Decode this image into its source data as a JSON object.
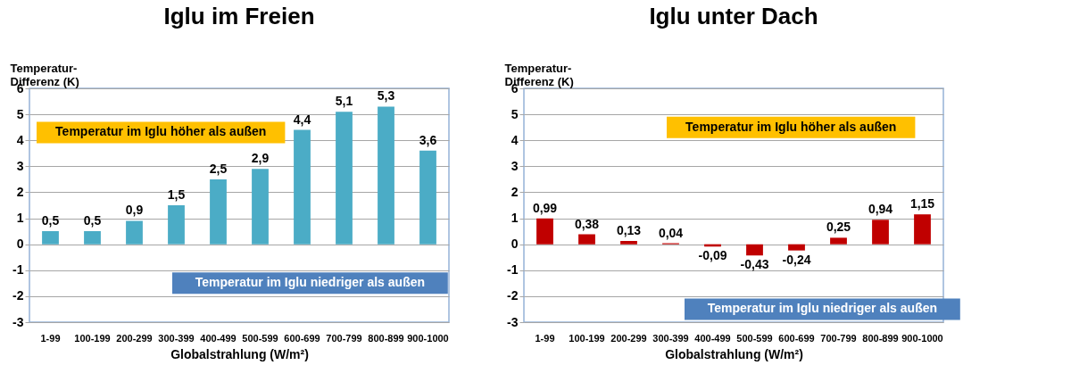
{
  "chart_data": [
    {
      "type": "bar",
      "title": "Iglu im Freien",
      "ylabel": "Temperatur-Differenz (K)",
      "xlabel": "Globalstrahlung (W/m²)",
      "categories": [
        "1-99",
        "100-199",
        "200-299",
        "300-399",
        "400-499",
        "500-599",
        "600-699",
        "700-799",
        "800-899",
        "900-1000"
      ],
      "values": [
        0.5,
        0.5,
        0.9,
        1.5,
        2.5,
        2.9,
        4.4,
        5.1,
        5.3,
        3.6
      ],
      "value_labels": [
        "0,5",
        "0,5",
        "0,9",
        "1,5",
        "2,5",
        "2,9",
        "4,4",
        "5,1",
        "5,3",
        "3,6"
      ],
      "color": "#4bacc6",
      "ylim": [
        -3,
        6
      ],
      "yticks": [
        -3,
        -2,
        -1,
        0,
        1,
        2,
        3,
        4,
        5,
        6
      ],
      "grid": "y",
      "legend": false,
      "annotations": [
        "Temperatur im Iglu höher als außen",
        "Temperatur im Iglu niedriger als außen"
      ]
    },
    {
      "type": "bar",
      "title": "Iglu unter Dach",
      "ylabel": "Temperatur-Differenz (K)",
      "xlabel": "Globalstrahlung (W/m²)",
      "categories": [
        "1-99",
        "100-199",
        "200-299",
        "300-399",
        "400-499",
        "500-599",
        "600-699",
        "700-799",
        "800-899",
        "900-1000"
      ],
      "values": [
        0.99,
        0.38,
        0.13,
        0.04,
        -0.09,
        -0.43,
        -0.24,
        0.25,
        0.94,
        1.15
      ],
      "value_labels": [
        "0,99",
        "0,38",
        "0,13",
        "0,04",
        "-0,09",
        "-0,43",
        "-0,24",
        "0,25",
        "0,94",
        "1,15"
      ],
      "color": "#c00000",
      "ylim": [
        -3,
        6
      ],
      "yticks": [
        -3,
        -2,
        -1,
        0,
        1,
        2,
        3,
        4,
        5,
        6
      ],
      "grid": "y",
      "legend": false,
      "annotations": [
        "Temperatur im Iglu höher als außen",
        "Temperatur im Iglu niedriger als außen"
      ]
    }
  ]
}
